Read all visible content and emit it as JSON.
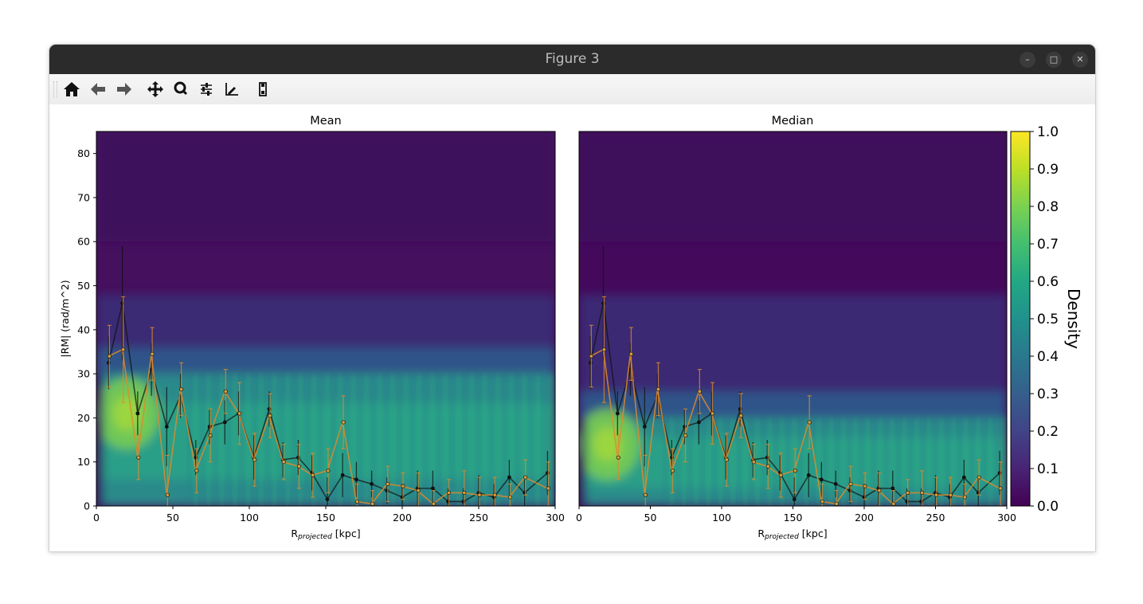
{
  "window": {
    "title": "Figure 3",
    "controls": {
      "minimize": "–",
      "maximize": "□",
      "close": "✕"
    }
  },
  "toolbar": {
    "items": [
      {
        "name": "home-button",
        "icon": "home-icon"
      },
      {
        "name": "back-button",
        "icon": "arrow-left-icon"
      },
      {
        "name": "forward-button",
        "icon": "arrow-right-icon"
      },
      {
        "name": "pan-button",
        "icon": "move-icon"
      },
      {
        "name": "zoom-button",
        "icon": "zoom-icon"
      },
      {
        "name": "subplots-button",
        "icon": "sliders-icon"
      },
      {
        "name": "edit-axes-button",
        "icon": "axes-edit-icon"
      },
      {
        "name": "save-button",
        "icon": "save-icon"
      }
    ]
  },
  "colors": {
    "black_series": "#111111",
    "orange_series": "#e08a2a",
    "orange_series_alt": "#d1a03a"
  },
  "chart_data": [
    {
      "type": "heatmap",
      "title": "Mean",
      "xlabel": "R",
      "xlabel_sub": "projected",
      "xlabel_unit": " [kpc]",
      "ylabel": "|RM| (rad/m^2)",
      "xlim": [
        0,
        300
      ],
      "ylim": [
        0,
        85
      ],
      "xticks": [
        0,
        50,
        100,
        150,
        200,
        250,
        300
      ],
      "yticks": [
        0,
        10,
        20,
        30,
        40,
        50,
        60,
        70,
        80
      ],
      "band_top": 30,
      "series": [
        {
          "x": [
            8,
            17,
            27,
            36,
            46,
            55,
            65,
            74,
            84,
            93,
            103,
            113,
            122,
            132,
            141,
            151,
            161,
            170,
            180,
            190,
            200,
            210,
            220,
            230,
            240,
            250,
            260,
            270,
            280,
            295
          ],
          "values": [
            32.5,
            46,
            21,
            31,
            18,
            25,
            11,
            18,
            19,
            21,
            11,
            22,
            10.5,
            11,
            7.5,
            1.5,
            7,
            6,
            5,
            3.5,
            2,
            4,
            4,
            1,
            1,
            3,
            2,
            6.5,
            3,
            7.5
          ],
          "errors": [
            6,
            13,
            5,
            6,
            9,
            5,
            4,
            4,
            5,
            5,
            5,
            4,
            4,
            4,
            4,
            5,
            5,
            4,
            3,
            3,
            3,
            4,
            4,
            3,
            3,
            4,
            3,
            4,
            3,
            5
          ]
        },
        {
          "x": [
            8,
            17,
            27,
            36,
            46,
            55,
            65,
            74,
            84,
            93,
            103,
            113,
            122,
            132,
            141,
            151,
            161,
            170,
            180,
            190,
            200,
            210,
            220,
            230,
            240,
            250,
            260,
            270,
            280,
            295
          ],
          "values": [
            34,
            35.5,
            11,
            34.5,
            2.5,
            26.5,
            8,
            16,
            26,
            21,
            10.5,
            20.5,
            10,
            9,
            7,
            8,
            19,
            1,
            0.5,
            5,
            4.5,
            3.5,
            0.5,
            3,
            3,
            2.5,
            2.5,
            2,
            6.5,
            4
          ],
          "errors": [
            7,
            12,
            5,
            6,
            9,
            6,
            5,
            6,
            5,
            7,
            6,
            5,
            4,
            5,
            5,
            5,
            6,
            4,
            3,
            4,
            3,
            4,
            3,
            3,
            5,
            4,
            4,
            3,
            4,
            6
          ]
        }
      ]
    },
    {
      "type": "heatmap",
      "title": "Median",
      "xlabel": "R",
      "xlabel_sub": "projected",
      "xlabel_unit": " [kpc]",
      "xlim": [
        0,
        300
      ],
      "ylim": [
        0,
        85
      ],
      "xticks": [
        0,
        50,
        100,
        150,
        200,
        250,
        300
      ],
      "band_top": 20,
      "series": [
        {
          "x": [
            8,
            17,
            27,
            36,
            46,
            55,
            65,
            74,
            84,
            93,
            103,
            113,
            122,
            132,
            141,
            151,
            161,
            170,
            180,
            190,
            200,
            210,
            220,
            230,
            240,
            250,
            260,
            270,
            280,
            295
          ],
          "values": [
            32.5,
            46,
            21,
            31,
            18,
            25,
            11,
            18,
            19,
            21,
            11,
            22,
            10.5,
            11,
            7.5,
            1.5,
            7,
            6,
            5,
            3.5,
            2,
            4,
            4,
            1,
            1,
            3,
            2,
            6.5,
            3,
            7.5
          ],
          "errors": [
            6,
            13,
            5,
            6,
            9,
            5,
            4,
            4,
            5,
            5,
            5,
            4,
            4,
            4,
            4,
            5,
            5,
            4,
            3,
            3,
            3,
            4,
            4,
            3,
            3,
            4,
            3,
            4,
            3,
            5
          ]
        },
        {
          "x": [
            8,
            17,
            27,
            36,
            46,
            55,
            65,
            74,
            84,
            93,
            103,
            113,
            122,
            132,
            141,
            151,
            161,
            170,
            180,
            190,
            200,
            210,
            220,
            230,
            240,
            250,
            260,
            270,
            280,
            295
          ],
          "values": [
            34,
            35.5,
            11,
            34.5,
            2.5,
            26.5,
            8,
            16,
            26,
            21,
            10.5,
            20.5,
            10,
            9,
            7,
            8,
            19,
            1,
            0.5,
            5,
            4.5,
            3.5,
            0.5,
            3,
            3,
            2.5,
            2.5,
            2,
            6.5,
            4
          ],
          "errors": [
            7,
            12,
            5,
            6,
            9,
            6,
            5,
            6,
            5,
            7,
            6,
            5,
            4,
            5,
            5,
            5,
            6,
            4,
            3,
            4,
            3,
            4,
            3,
            3,
            5,
            4,
            4,
            3,
            4,
            6
          ]
        }
      ]
    }
  ],
  "colorbar": {
    "label": "Density",
    "ticks": [
      "0.0",
      "0.1",
      "0.2",
      "0.3",
      "0.4",
      "0.5",
      "0.6",
      "0.7",
      "0.8",
      "0.9",
      "1.0"
    ],
    "colormap": [
      "#440154",
      "#482475",
      "#414487",
      "#355f8d",
      "#2a788e",
      "#21918c",
      "#22a884",
      "#44bf70",
      "#7ad151",
      "#bddf26",
      "#fde725"
    ]
  }
}
